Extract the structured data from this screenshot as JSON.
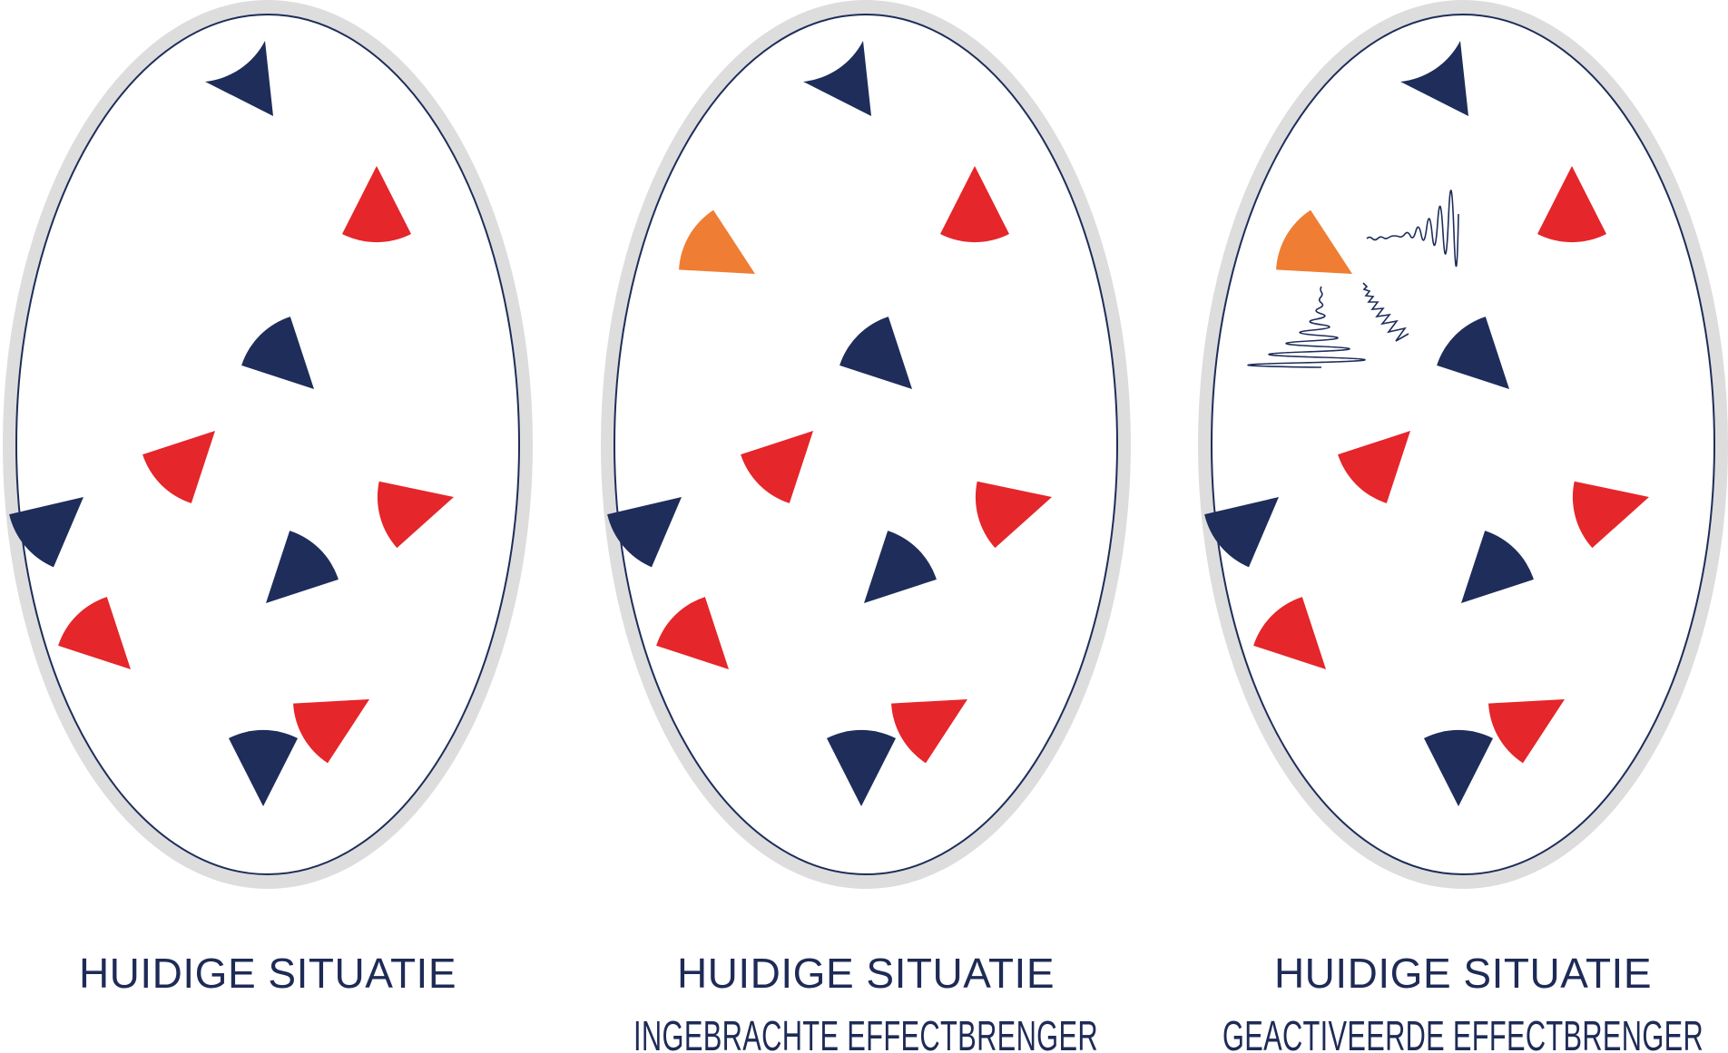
{
  "colors": {
    "navy": "#1e2d5a",
    "red": "#e5262a",
    "orange": "#ef7d33",
    "ring": "#dddddd",
    "outline": "#1e2d5a",
    "text": "#1e2b57"
  },
  "panels": [
    {
      "id": "panel-1",
      "caption_lines": [
        "HUIDIGE SITUATIE"
      ],
      "effector": "none"
    },
    {
      "id": "panel-2",
      "caption_lines": [
        "HUIDIGE SITUATIE",
        "INGEBRACHTE EFFECTBRENGER"
      ],
      "effector": "inactive"
    },
    {
      "id": "panel-3",
      "caption_lines": [
        "HUIDIGE SITUATIE",
        "GEACTIVEERDE EFFECTBRENGER"
      ],
      "effector": "activated"
    }
  ]
}
